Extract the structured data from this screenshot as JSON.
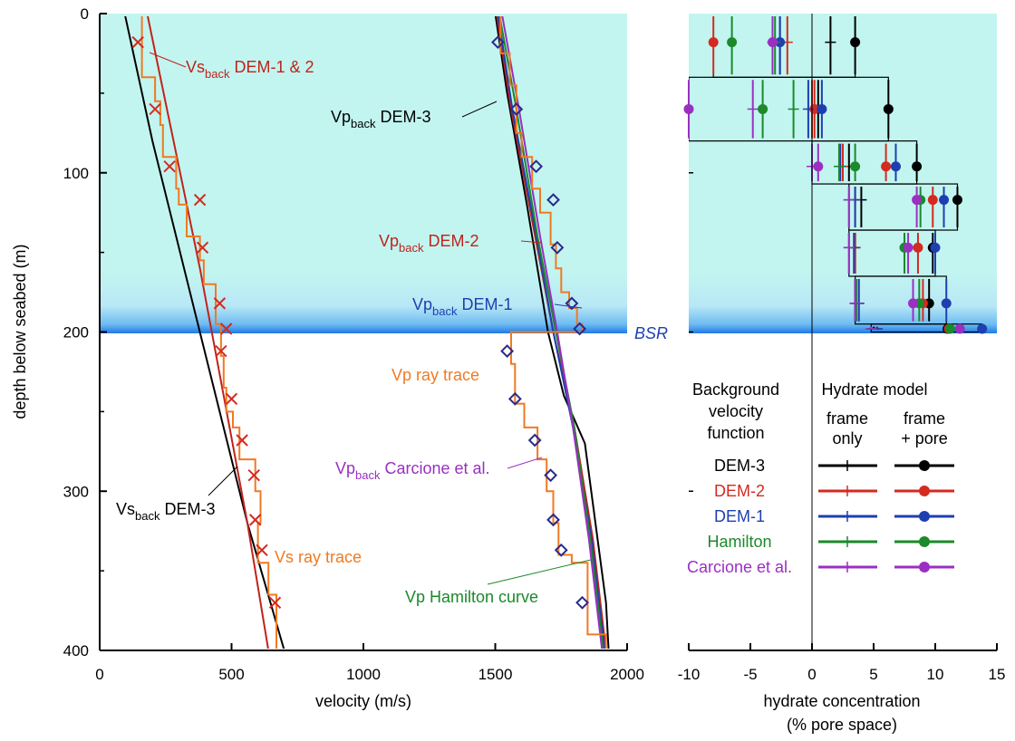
{
  "chart_data": [
    {
      "type": "line",
      "panel": "velocity",
      "xlabel": "velocity (m/s)",
      "ylabel": "depth below seabed (m)",
      "xlim": [
        0,
        2000
      ],
      "ylim": [
        400,
        0
      ],
      "xticks": [
        0,
        500,
        1000,
        1500,
        2000
      ],
      "yticks": [
        0,
        100,
        200,
        300,
        400
      ],
      "hydrate_zone_depth": 200,
      "bsr_label": "BSR",
      "annotations": {
        "vs_back_dem12": {
          "main": "Vs",
          "sub": "back",
          "rest": " DEM-1 & 2"
        },
        "vp_back_dem3": {
          "main": "Vp",
          "sub": "back",
          "rest": " DEM-3"
        },
        "vp_back_dem2": {
          "main": "Vp",
          "sub": "back",
          "rest": " DEM-2"
        },
        "vp_back_dem1": {
          "main": "Vp",
          "sub": "back",
          "rest": " DEM-1"
        },
        "vp_ray": {
          "main": "Vp ray trace"
        },
        "vp_back_carcione": {
          "main": "Vp",
          "sub": "back",
          "rest": " Carcione et al."
        },
        "vs_back_dem3": {
          "main": "Vs",
          "sub": "back",
          "rest": " DEM-3"
        },
        "vs_ray": {
          "main": "Vs ray trace"
        },
        "vp_hamilton": {
          "main": "Vp Hamilton curve"
        }
      },
      "series": [
        {
          "key": "vs_back_dem3",
          "color": "#000000",
          "x": [
            95,
            200,
            320,
            440,
            560,
            700
          ],
          "y": [
            0,
            80,
            160,
            240,
            320,
            400
          ]
        },
        {
          "key": "vs_back_dem12",
          "color": "#c0231b",
          "x": [
            180,
            280,
            380,
            470,
            560,
            640
          ],
          "y": [
            0,
            80,
            160,
            240,
            320,
            400
          ]
        },
        {
          "key": "vs_ray",
          "color": "#f07a22",
          "x": [
            105,
            160,
            160,
            210,
            210,
            230,
            230,
            240,
            240,
            290,
            290,
            300,
            300,
            330,
            330,
            380,
            380,
            395,
            395,
            440,
            440,
            460,
            460,
            470,
            470,
            480,
            480,
            505,
            505,
            530,
            530,
            590,
            590,
            610,
            610,
            600,
            600,
            640,
            640,
            670,
            670
          ],
          "y": [
            0,
            0,
            40,
            40,
            55,
            55,
            70,
            70,
            90,
            90,
            110,
            110,
            120,
            120,
            140,
            140,
            155,
            155,
            170,
            170,
            195,
            195,
            215,
            215,
            235,
            235,
            250,
            250,
            260,
            260,
            280,
            280,
            300,
            300,
            320,
            320,
            345,
            345,
            365,
            365,
            400
          ]
        },
        {
          "key": "vp_back_dem3",
          "color": "#000000",
          "x": [
            1500,
            1545,
            1620,
            1700,
            1760,
            1840,
            1920,
            1930
          ],
          "y": [
            0,
            50,
            120,
            200,
            240,
            270,
            370,
            400
          ]
        },
        {
          "key": "vp_back_dem2",
          "color": "#c0231b",
          "x": [
            1505,
            1560,
            1640,
            1720,
            1800,
            1870,
            1920
          ],
          "y": [
            0,
            60,
            130,
            200,
            260,
            330,
            400
          ]
        },
        {
          "key": "vp_back_dem1",
          "color": "#1f3fb0",
          "x": [
            1510,
            1565,
            1645,
            1720,
            1795,
            1865,
            1915
          ],
          "y": [
            0,
            60,
            130,
            200,
            260,
            330,
            400
          ]
        },
        {
          "key": "vp_hamilton",
          "color": "#1a8a2a",
          "x": [
            1515,
            1580,
            1660,
            1730,
            1800,
            1860,
            1910
          ],
          "y": [
            0,
            60,
            140,
            200,
            260,
            330,
            400
          ]
        },
        {
          "key": "vp_back_carcione",
          "color": "#9a2fc2",
          "x": [
            1525,
            1590,
            1670,
            1735,
            1795,
            1855,
            1905
          ],
          "y": [
            0,
            60,
            140,
            200,
            260,
            330,
            400
          ]
        },
        {
          "key": "vp_ray",
          "color": "#f07a22",
          "x": [
            1520,
            1520,
            1555,
            1555,
            1580,
            1580,
            1600,
            1600,
            1640,
            1640,
            1670,
            1670,
            1710,
            1710,
            1730,
            1730,
            1750,
            1750,
            1780,
            1780,
            1810,
            1810,
            1830,
            1830,
            1560,
            1560,
            1575,
            1575,
            1610,
            1610,
            1660,
            1660,
            1695,
            1695,
            1720,
            1720,
            1740,
            1740,
            1790,
            1790,
            1850,
            1850,
            1920,
            1920
          ],
          "y": [
            0,
            25,
            25,
            45,
            45,
            75,
            75,
            90,
            90,
            110,
            110,
            125,
            125,
            145,
            145,
            160,
            160,
            175,
            175,
            185,
            185,
            195,
            195,
            200,
            200,
            220,
            220,
            245,
            245,
            260,
            260,
            280,
            280,
            300,
            300,
            320,
            320,
            340,
            340,
            345,
            345,
            390,
            390,
            400
          ]
        }
      ],
      "markers": [
        {
          "type": "x",
          "color": "#d42a20",
          "x": [
            145,
            210,
            265,
            380,
            390,
            455,
            480,
            460,
            500,
            540,
            585,
            590,
            615,
            665
          ],
          "y": [
            18,
            60,
            96,
            117,
            147,
            182,
            198,
            212,
            242,
            268,
            290,
            318,
            337,
            370
          ]
        },
        {
          "type": "diamond",
          "color": "#2a2a8a",
          "x": [
            1510,
            1580,
            1655,
            1720,
            1735,
            1790,
            1820,
            1545,
            1575,
            1650,
            1710,
            1720,
            1750,
            1830
          ],
          "y": [
            18,
            60,
            96,
            117,
            147,
            182,
            198,
            212,
            242,
            268,
            290,
            318,
            337,
            370
          ]
        }
      ]
    },
    {
      "type": "scatter",
      "panel": "hydrate",
      "xlabel": "hydrate concentration",
      "xlabel2": "(% pore space)",
      "xlim": [
        -10,
        15
      ],
      "ylim": [
        400,
        0
      ],
      "xticks": [
        -10,
        -5,
        0,
        5,
        10,
        15
      ],
      "xtick_labels": [
        "-10",
        "-5",
        "0",
        "5",
        "10",
        "15"
      ],
      "intervals": [
        {
          "top": 0,
          "bottom": 40,
          "y": 18
        },
        {
          "top": 40,
          "bottom": 80,
          "y": 60
        },
        {
          "top": 80,
          "bottom": 107,
          "y": 96
        },
        {
          "top": 107,
          "bottom": 136,
          "y": 117
        },
        {
          "top": 136,
          "bottom": 165,
          "y": 147
        },
        {
          "top": 165,
          "bottom": 195,
          "y": 182
        },
        {
          "top": 195,
          "bottom": 200,
          "y": 198
        }
      ],
      "series": [
        {
          "name": "DEM-3",
          "color": "#000000",
          "frame_only": [
            1.5,
            0.5,
            3.0,
            4.0,
            3.5,
            3.5,
            5.0
          ],
          "frame_pore": [
            3.5,
            6.2,
            8.5,
            11.8,
            9.8,
            9.5,
            11.0
          ]
        },
        {
          "name": "DEM-2",
          "color": "#d42a20",
          "frame_only": [
            -2.0,
            0.0,
            2.5,
            3.5,
            3.5,
            3.8,
            5.2
          ],
          "frame_pore": [
            -8.0,
            0.2,
            6.0,
            9.8,
            8.6,
            9.0,
            11.1
          ]
        },
        {
          "name": "DEM-1",
          "color": "#1f3fb0",
          "frame_only": [
            -2.6,
            -0.3,
            2.3,
            3.5,
            3.4,
            3.8,
            5.3
          ],
          "frame_pore": [
            -2.6,
            0.8,
            6.8,
            10.7,
            10.0,
            10.9,
            13.8
          ]
        },
        {
          "name": "Hamilton",
          "color": "#1a8a2a",
          "frame_only": [
            -3.0,
            -1.5,
            2.2,
            3.0,
            3.0,
            3.6,
            4.8
          ],
          "frame_pore": [
            -6.5,
            -4.0,
            3.5,
            8.8,
            7.5,
            8.7,
            11.2
          ]
        },
        {
          "name": "Carcione et al.",
          "color": "#9a2fc2",
          "frame_only": [
            -3.2,
            -4.8,
            0.0,
            3.0,
            3.0,
            3.5,
            4.8
          ],
          "frame_pore": [
            -3.2,
            -10.0,
            0.5,
            8.5,
            7.8,
            8.2,
            12.0
          ]
        }
      ],
      "legend": {
        "col1_lines": [
          "Background",
          "velocity",
          "function"
        ],
        "title": "Hydrate model",
        "col2a_lines": [
          "frame",
          "only"
        ],
        "col2b_lines": [
          "frame",
          "+ pore"
        ]
      }
    }
  ]
}
